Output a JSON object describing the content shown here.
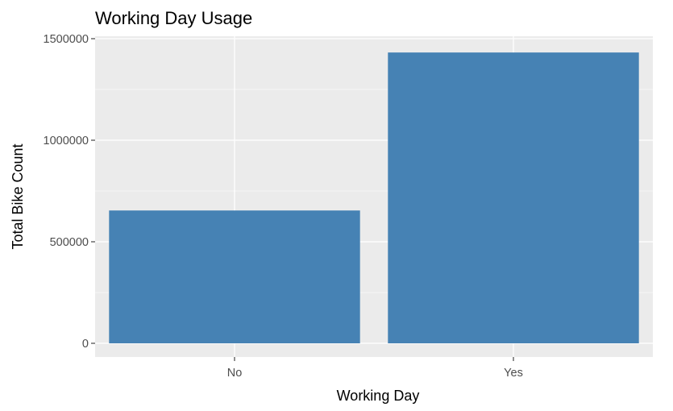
{
  "chart_data": {
    "type": "bar",
    "title": "Working Day Usage",
    "xlabel": "Working Day",
    "ylabel": "Total Bike Count",
    "categories": [
      "No",
      "Yes"
    ],
    "values": [
      654000,
      1432000
    ],
    "ylim": [
      0,
      1500000
    ],
    "yticks": [
      0,
      500000,
      1000000,
      1500000
    ],
    "ytick_labels": [
      "0",
      "500000",
      "1000000",
      "1500000"
    ],
    "grid": true,
    "legend": "none",
    "colors": {
      "bar": "#4682b4",
      "panel": "#ebebeb",
      "grid": "#ffffff",
      "tick": "#333333"
    }
  }
}
